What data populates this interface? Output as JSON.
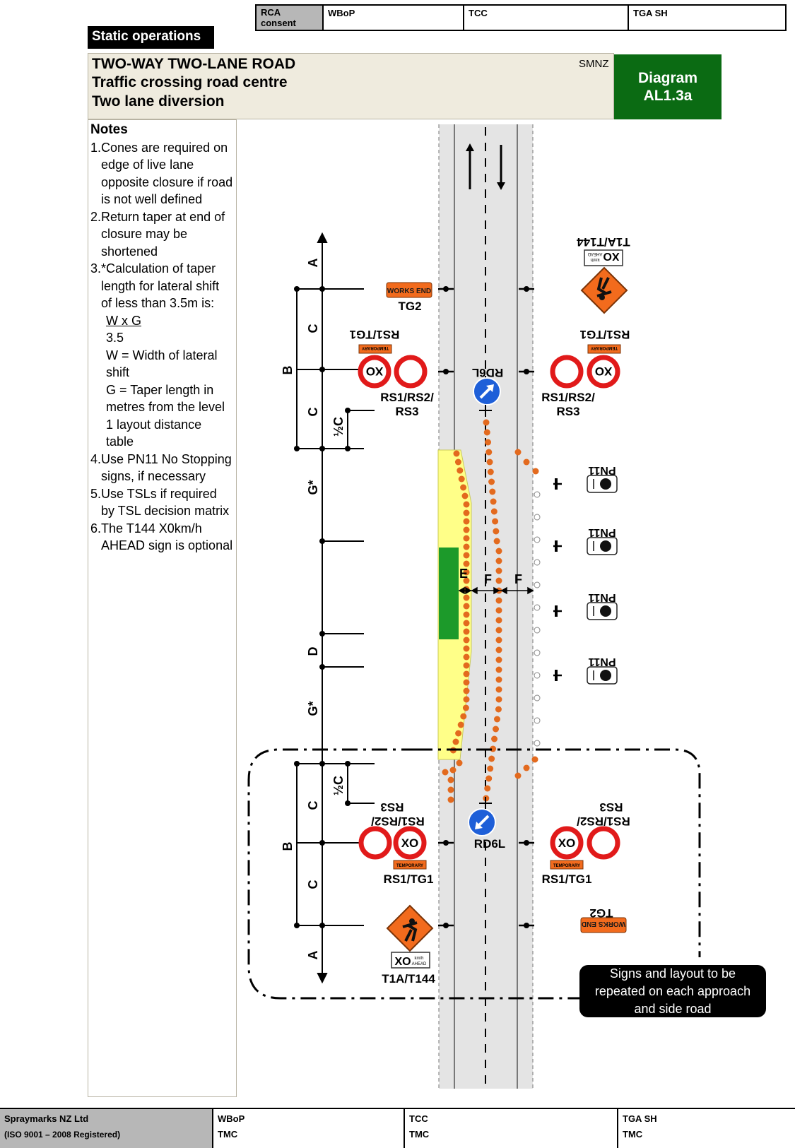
{
  "header": {
    "consent_label": "RCA consent",
    "consent_cells": [
      "WBoP",
      "TCC",
      "TGA SH"
    ],
    "static_operations": "Static operations",
    "title_lines": [
      "TWO-WAY TWO-LANE ROAD",
      "Traffic crossing road centre",
      "Two lane diversion"
    ],
    "code": "SMNZ",
    "diagram_label": [
      "Diagram",
      "AL1.3a"
    ]
  },
  "notes": {
    "heading": "Notes",
    "items": [
      {
        "num": "1.",
        "lines": [
          "Cones are required on",
          "edge of live lane",
          "opposite closure if road",
          "is not well defined"
        ]
      },
      {
        "num": "2.",
        "lines": [
          "Return taper at end of",
          "closure may be",
          "shortened"
        ]
      },
      {
        "num": "3.",
        "lines": [
          "*Calculation of taper",
          "length for lateral shift",
          "of less than 3.5m is:"
        ]
      },
      {
        "num": "4.",
        "lines": [
          "Use PN11 No Stopping",
          "signs, if necessary"
        ]
      },
      {
        "num": "5.",
        "lines": [
          "Use TSLs if  required",
          "by TSL decision matrix"
        ]
      },
      {
        "num": "6.",
        "lines": [
          "The T144 X0km/h",
          "AHEAD sign is optional"
        ]
      }
    ],
    "formula": {
      "numerator": "W x G",
      "denominator": "3.5",
      "defs": [
        "W = Width of lateral",
        "shift",
        "G = Taper length in",
        "metres from the level",
        "1 layout distance",
        "table"
      ]
    }
  },
  "diagram": {
    "dimension_labels": {
      "A": "A",
      "B": "B",
      "C": "C",
      "half_c": "½C",
      "g_star": "G*",
      "d": "D",
      "e": "E",
      "f": "F"
    },
    "sign_labels": {
      "tg2": "TG2",
      "rs1_tg1": "RS1/TG1",
      "rs1_rs2_l1": "RS1/RS2/",
      "rs1_rs2_l2": "RS3",
      "rd6l": "RD6L",
      "pn11": "PN11",
      "t1a_t144": "T1A/T144",
      "works_end": "WORKS END",
      "temporary": "TEMPORARY",
      "xo": "XO",
      "kmh": "km/h",
      "ahead": "AHEAD"
    },
    "colors": {
      "road": "#e4e4e4",
      "work_area": "#ffff88",
      "work_green": "#1c9a2a",
      "cone": "#e36a1e",
      "sign_orange": "#f26b1d",
      "sign_red": "#e11a1a",
      "sign_blue": "#1e5fd8"
    }
  },
  "repeat_note": [
    "Signs and layout to be",
    "repeated on each  approach",
    "and side road"
  ],
  "footer": {
    "company_lines": [
      "Spraymarks NZ Ltd",
      "(ISO 9001 – 2008 Registered)"
    ],
    "cells": [
      {
        "top": "WBoP",
        "bottom": "TMC"
      },
      {
        "top": "TCC",
        "bottom": "TMC"
      },
      {
        "top": "TGA SH",
        "bottom": "TMC"
      }
    ]
  }
}
